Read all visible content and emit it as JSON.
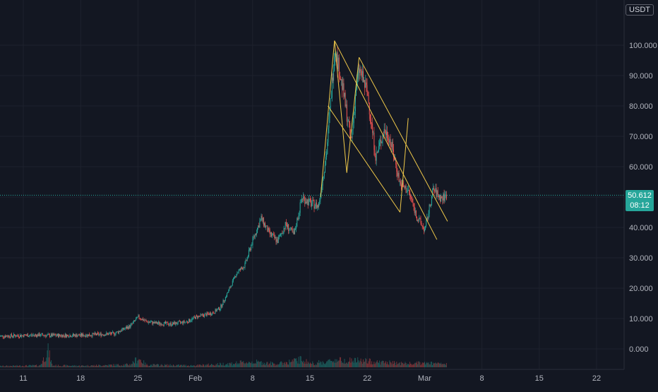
{
  "header": {
    "currency": "USDT"
  },
  "last_price": {
    "value": 50.612,
    "label": "50.612",
    "countdown": "08:12"
  },
  "colors": {
    "background": "#131722",
    "grid": "#1e222d",
    "up": "#26a69a",
    "down": "#ef5350",
    "trendline": "#f0c94a",
    "price_line": "#26a69a",
    "axis_text": "#b2b5be"
  },
  "chart_data": {
    "type": "candlestick",
    "title": "",
    "xlabel": "",
    "ylabel": "",
    "ylim": [
      -4,
      108
    ],
    "y_ticks": [
      {
        "value": 0,
        "label": "0.000"
      },
      {
        "value": 10,
        "label": "10.000"
      },
      {
        "value": 20,
        "label": "20.000"
      },
      {
        "value": 30,
        "label": "30.000"
      },
      {
        "value": 40,
        "label": "40.000"
      },
      {
        "value": 50,
        "label": "50.000"
      },
      {
        "value": 60,
        "label": "60.000"
      },
      {
        "value": 70,
        "label": "70.000"
      },
      {
        "value": 80,
        "label": "80.000"
      },
      {
        "value": 90,
        "label": "90.000"
      },
      {
        "value": 100,
        "label": "100.000"
      }
    ],
    "x_ticks": [
      {
        "day": 11,
        "label": "11"
      },
      {
        "day": 18,
        "label": "18"
      },
      {
        "day": 25,
        "label": "25"
      },
      {
        "day": 32,
        "label": "Feb"
      },
      {
        "day": 39,
        "label": "8"
      },
      {
        "day": 46,
        "label": "15"
      },
      {
        "day": 53,
        "label": "22"
      },
      {
        "day": 60,
        "label": "Mar"
      },
      {
        "day": 67,
        "label": "8"
      },
      {
        "day": 74,
        "label": "15"
      },
      {
        "day": 81,
        "label": "22"
      }
    ],
    "price_path": [
      [
        8,
        4.2
      ],
      [
        13,
        4.6
      ],
      [
        14,
        4.4
      ],
      [
        18,
        4.5
      ],
      [
        22,
        5.0
      ],
      [
        24,
        7.5
      ],
      [
        25,
        10.5
      ],
      [
        26,
        9.0
      ],
      [
        27,
        8.5
      ],
      [
        29,
        8.2
      ],
      [
        31,
        9.0
      ],
      [
        32,
        10.5
      ],
      [
        34,
        11.8
      ],
      [
        35,
        13.5
      ],
      [
        36,
        19.0
      ],
      [
        37,
        25.0
      ],
      [
        38,
        27.5
      ],
      [
        39,
        36.0
      ],
      [
        40,
        43.0
      ],
      [
        41,
        38.0
      ],
      [
        42,
        35.5
      ],
      [
        43,
        41.0
      ],
      [
        44,
        37.5
      ],
      [
        45,
        50.0
      ],
      [
        46,
        48.0
      ],
      [
        47,
        47.0
      ],
      [
        48,
        65.0
      ],
      [
        49,
        99.5
      ],
      [
        50,
        85.0
      ],
      [
        51,
        68.0
      ],
      [
        51.6,
        86.0
      ],
      [
        52,
        92.0
      ],
      [
        53,
        84.0
      ],
      [
        54,
        63.0
      ],
      [
        55,
        72.0
      ],
      [
        55.6,
        70.0
      ],
      [
        56,
        66.0
      ],
      [
        57,
        54.0
      ],
      [
        58,
        52.0
      ],
      [
        59,
        43.5
      ],
      [
        60,
        39.0
      ],
      [
        61,
        52.5
      ],
      [
        62,
        49.5
      ],
      [
        62.7,
        50.6
      ]
    ],
    "volume_path": [
      [
        8,
        0.4
      ],
      [
        13,
        0.6
      ],
      [
        14,
        5.5
      ],
      [
        14.5,
        0.6
      ],
      [
        18,
        0.5
      ],
      [
        24,
        0.9
      ],
      [
        25,
        3.0
      ],
      [
        26,
        0.8
      ],
      [
        32,
        0.6
      ],
      [
        36,
        1.2
      ],
      [
        39,
        1.8
      ],
      [
        42,
        1.1
      ],
      [
        45,
        2.6
      ],
      [
        46,
        1.3
      ],
      [
        48,
        1.8
      ],
      [
        49,
        2.4
      ],
      [
        52,
        2.2
      ],
      [
        55,
        1.6
      ],
      [
        58,
        1.2
      ],
      [
        60,
        1.4
      ],
      [
        62.7,
        1.0
      ]
    ],
    "trendlines": [
      {
        "from": [
          47.3,
          50.0
        ],
        "to": [
          49.0,
          101.5
        ]
      },
      {
        "from": [
          49.0,
          101.5
        ],
        "to": [
          61.5,
          36.0
        ]
      },
      {
        "from": [
          49.0,
          101.5
        ],
        "to": [
          50.5,
          58.0
        ]
      },
      {
        "from": [
          50.5,
          58.0
        ],
        "to": [
          52.0,
          96.0
        ]
      },
      {
        "from": [
          52.0,
          96.0
        ],
        "to": [
          62.8,
          42.0
        ]
      },
      {
        "from": [
          48.2,
          80.0
        ],
        "to": [
          57.0,
          45.0
        ]
      },
      {
        "from": [
          57.0,
          45.0
        ],
        "to": [
          58.0,
          76.0
        ]
      }
    ],
    "grid": true,
    "legend": "none"
  }
}
